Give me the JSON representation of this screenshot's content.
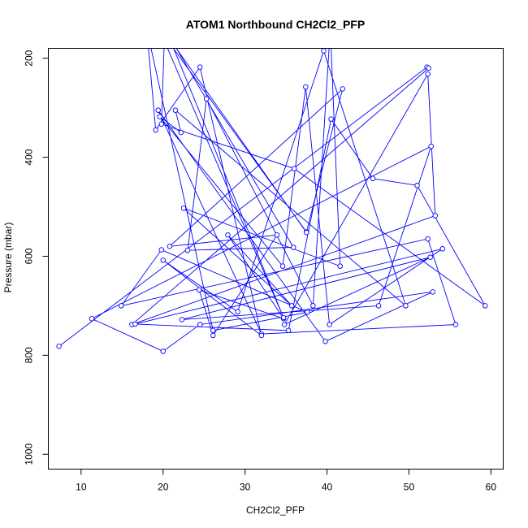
{
  "chart_data": {
    "type": "line",
    "title": "ATOM1 Northbound CH2Cl2_PFP",
    "xlabel": "CH2Cl2_PFP",
    "ylabel": "Pressure (mbar)",
    "xlim": [
      6,
      61.5
    ],
    "ylim": [
      1030,
      180
    ],
    "y_reversed": true,
    "x_ticks": [
      10,
      20,
      30,
      40,
      50,
      60
    ],
    "y_ticks": [
      200,
      400,
      600,
      800,
      1000
    ],
    "grid": false,
    "legend": "none",
    "series_color": "#0000ff",
    "series": [
      {
        "x": [
          7.3,
          52.2,
          52.4,
          16.2,
          53.2,
          52.3,
          34.8,
          52.6,
          22.3,
          46.3,
          52.7,
          11.3,
          20.0,
          24.5,
          52.9,
          39.8,
          19.4,
          32.0,
          55.7,
          52.3,
          14.9,
          19.8,
          37.6,
          26.1,
          18.0,
          19.1,
          24.5,
          32.0,
          20.0,
          29.1,
          39.6,
          49.6,
          21.5,
          22.2,
          19.6,
          34.6,
          37.4,
          40.3,
          54.1,
          16.6,
          35.3,
          40.5,
          45.6,
          51.0,
          59.3,
          36.0,
          19.8,
          20.2,
          35.9,
          23.0,
          25.3,
          38.3,
          40.4,
          41.6,
          22.5,
          35.7,
          27.9,
          34.7,
          24.4,
          26.1,
          33.9,
          20.8,
          41.9,
          37.5,
          19.5,
          34.7,
          20.3,
          19.9,
          37.5
        ],
        "y": [
          782,
          218,
          220,
          738,
          518,
          232,
          738,
          602,
          728,
          700,
          378,
          726,
          792,
          738,
          672,
          772,
          305,
          757,
          738,
          565,
          700,
          587,
          713,
          750,
          140,
          345,
          218,
          760,
          608,
          712,
          185,
          700,
          305,
          350,
          318,
          620,
          258,
          738,
          585,
          737,
          750,
          323,
          443,
          457,
          700,
          423,
          333,
          140,
          582,
          588,
          282,
          700,
          140,
          620,
          503,
          700,
          557,
          726,
          668,
          760,
          557,
          580,
          262,
          551,
          140,
          724,
          140,
          140,
          552
        ]
      }
    ]
  }
}
